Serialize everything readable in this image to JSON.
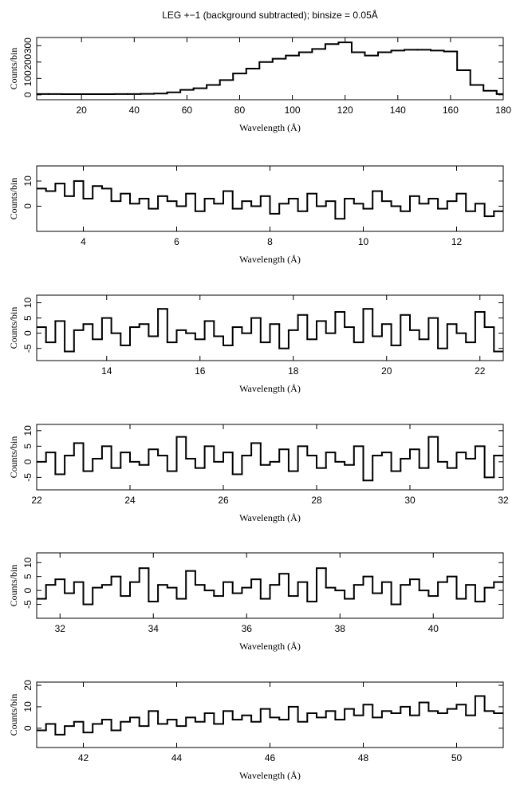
{
  "chart_data": [
    {
      "type": "step",
      "title": "LEG +−1 (background subtracted); binsize = 0.05Å",
      "xlabel": "Wavelength (Å)",
      "ylabel": "Counts/bin",
      "color": "#000000",
      "x": [
        5,
        10,
        15,
        20,
        25,
        30,
        35,
        40,
        45,
        50,
        55,
        60,
        65,
        70,
        75,
        80,
        85,
        90,
        95,
        100,
        105,
        110,
        115,
        120,
        125,
        130,
        135,
        140,
        145,
        150,
        155,
        160,
        165,
        170,
        175,
        180
      ],
      "values": [
        5,
        5,
        4,
        4,
        4,
        4,
        5,
        5,
        6,
        8,
        15,
        30,
        40,
        60,
        90,
        130,
        160,
        200,
        220,
        240,
        260,
        280,
        310,
        320,
        260,
        240,
        260,
        270,
        275,
        275,
        270,
        265,
        150,
        60,
        25,
        5
      ],
      "xlim": [
        3,
        180
      ],
      "xticks": [
        20,
        40,
        60,
        80,
        100,
        120,
        140,
        160,
        180
      ],
      "ylim": [
        -30,
        350
      ],
      "yticks": [
        0,
        100,
        200,
        300
      ]
    },
    {
      "type": "step",
      "xlabel": "Wavelength (Å)",
      "ylabel": "Counts/bin",
      "color": "#000000",
      "x": [
        3.1,
        3.3,
        3.5,
        3.7,
        3.9,
        4.1,
        4.3,
        4.5,
        4.7,
        4.9,
        5.1,
        5.3,
        5.5,
        5.7,
        5.9,
        6.1,
        6.3,
        6.5,
        6.7,
        6.9,
        7.1,
        7.3,
        7.5,
        7.7,
        7.9,
        8.1,
        8.3,
        8.5,
        8.7,
        8.9,
        9.1,
        9.3,
        9.5,
        9.7,
        9.9,
        10.1,
        10.3,
        10.5,
        10.7,
        10.9,
        11.1,
        11.3,
        11.5,
        11.7,
        11.9,
        12.1,
        12.3,
        12.5,
        12.7,
        12.9
      ],
      "values": [
        7,
        6,
        9,
        4,
        10,
        3,
        8,
        7,
        2,
        5,
        1,
        3,
        -1,
        4,
        2,
        0,
        5,
        -2,
        3,
        1,
        6,
        -1,
        2,
        0,
        4,
        -3,
        1,
        3,
        -2,
        5,
        0,
        2,
        -5,
        3,
        1,
        -1,
        6,
        2,
        0,
        -2,
        4,
        1,
        3,
        -1,
        2,
        5,
        -2,
        1,
        -4,
        -2
      ],
      "xlim": [
        3,
        13
      ],
      "xticks": [
        4,
        6,
        8,
        10,
        12
      ],
      "ylim": [
        -10,
        16
      ],
      "yticks": [
        0,
        10
      ]
    },
    {
      "type": "step",
      "xlabel": "Wavelength (Å)",
      "ylabel": "Counts/bin",
      "color": "#000000",
      "x": [
        12.6,
        12.8,
        13,
        13.2,
        13.4,
        13.6,
        13.8,
        14,
        14.2,
        14.4,
        14.6,
        14.8,
        15,
        15.2,
        15.4,
        15.6,
        15.8,
        16,
        16.2,
        16.4,
        16.6,
        16.8,
        17,
        17.2,
        17.4,
        17.6,
        17.8,
        18,
        18.2,
        18.4,
        18.6,
        18.8,
        19,
        19.2,
        19.4,
        19.6,
        19.8,
        20,
        20.2,
        20.4,
        20.6,
        20.8,
        21,
        21.2,
        21.4,
        21.6,
        21.8,
        22,
        22.2,
        22.4
      ],
      "values": [
        2,
        -3,
        4,
        -6,
        1,
        3,
        -2,
        5,
        0,
        -4,
        2,
        3,
        -1,
        8,
        -3,
        1,
        0,
        -2,
        4,
        -1,
        -4,
        2,
        0,
        5,
        -3,
        3,
        -5,
        1,
        6,
        -2,
        4,
        0,
        7,
        2,
        -3,
        8,
        -1,
        3,
        -4,
        6,
        1,
        -2,
        5,
        -5,
        3,
        0,
        -3,
        7,
        2,
        -6
      ],
      "xlim": [
        12.5,
        22.5
      ],
      "xticks": [
        14,
        16,
        18,
        20,
        22
      ],
      "ylim": [
        -9,
        12.5
      ],
      "yticks": [
        -5,
        0,
        5,
        10
      ]
    },
    {
      "type": "step",
      "xlabel": "Wavelength (Å)",
      "ylabel": "Counts/bin",
      "color": "#000000",
      "x": [
        22.1,
        22.3,
        22.5,
        22.7,
        22.9,
        23.1,
        23.3,
        23.5,
        23.7,
        23.9,
        24.1,
        24.3,
        24.5,
        24.7,
        24.9,
        25.1,
        25.3,
        25.5,
        25.7,
        25.9,
        26.1,
        26.3,
        26.5,
        26.7,
        26.9,
        27.1,
        27.3,
        27.5,
        27.7,
        27.9,
        28.1,
        28.3,
        28.5,
        28.7,
        28.9,
        29.1,
        29.3,
        29.5,
        29.7,
        29.9,
        30.1,
        30.3,
        30.5,
        30.7,
        30.9,
        31.1,
        31.3,
        31.5,
        31.7,
        31.9
      ],
      "values": [
        0,
        3,
        -4,
        2,
        6,
        -3,
        1,
        5,
        -2,
        3,
        0,
        -1,
        4,
        2,
        -3,
        8,
        1,
        -2,
        5,
        0,
        3,
        -4,
        2,
        6,
        -1,
        0,
        4,
        -3,
        5,
        2,
        -2,
        3,
        0,
        -1,
        5,
        -6,
        2,
        3,
        -3,
        1,
        4,
        -2,
        8,
        0,
        -2,
        3,
        1,
        5,
        -5,
        2
      ],
      "xlim": [
        22,
        32
      ],
      "xticks": [
        22,
        24,
        26,
        28,
        30,
        32
      ],
      "ylim": [
        -9,
        12
      ],
      "yticks": [
        -5,
        0,
        5,
        10
      ]
    },
    {
      "type": "step",
      "xlabel": "Wavelength (Å)",
      "ylabel": "Counts/bin",
      "color": "#000000",
      "x": [
        31.6,
        31.8,
        32,
        32.2,
        32.4,
        32.6,
        32.8,
        33,
        33.2,
        33.4,
        33.6,
        33.8,
        34,
        34.2,
        34.4,
        34.6,
        34.8,
        35,
        35.2,
        35.4,
        35.6,
        35.8,
        36,
        36.2,
        36.4,
        36.6,
        36.8,
        37,
        37.2,
        37.4,
        37.6,
        37.8,
        38,
        38.2,
        38.4,
        38.6,
        38.8,
        39,
        39.2,
        39.4,
        39.6,
        39.8,
        40,
        40.2,
        40.4,
        40.6,
        40.8,
        41,
        41.2,
        41.4
      ],
      "values": [
        -3,
        2,
        4,
        -1,
        3,
        -5,
        1,
        2,
        5,
        -2,
        3,
        8,
        -4,
        2,
        1,
        -3,
        7,
        2,
        0,
        -2,
        3,
        -1,
        1,
        4,
        -3,
        2,
        6,
        -2,
        3,
        -4,
        8,
        1,
        0,
        -3,
        2,
        5,
        -1,
        3,
        -5,
        2,
        4,
        0,
        -2,
        3,
        5,
        -3,
        2,
        -4,
        1,
        3
      ],
      "xlim": [
        31.5,
        41.5
      ],
      "xticks": [
        32,
        34,
        36,
        38,
        40
      ],
      "ylim": [
        -10,
        13.5
      ],
      "yticks": [
        -5,
        0,
        5,
        10
      ]
    },
    {
      "type": "step",
      "xlabel": "Wavelength (Å)",
      "ylabel": "Counts/bin",
      "color": "#000000",
      "x": [
        41.1,
        41.3,
        41.5,
        41.7,
        41.9,
        42.1,
        42.3,
        42.5,
        42.7,
        42.9,
        43.1,
        43.3,
        43.5,
        43.7,
        43.9,
        44.1,
        44.3,
        44.5,
        44.7,
        44.9,
        45.1,
        45.3,
        45.5,
        45.7,
        45.9,
        46.1,
        46.3,
        46.5,
        46.7,
        46.9,
        47.1,
        47.3,
        47.5,
        47.7,
        47.9,
        48.1,
        48.3,
        48.5,
        48.7,
        48.9,
        49.1,
        49.3,
        49.5,
        49.7,
        49.9,
        50.1,
        50.3,
        50.5,
        50.7,
        50.9
      ],
      "values": [
        -1,
        2,
        -3,
        1,
        3,
        -2,
        2,
        4,
        -1,
        3,
        5,
        1,
        8,
        2,
        4,
        1,
        5,
        3,
        7,
        2,
        8,
        4,
        6,
        3,
        9,
        5,
        4,
        10,
        3,
        7,
        5,
        8,
        4,
        9,
        6,
        11,
        5,
        8,
        7,
        10,
        6,
        12,
        8,
        7,
        9,
        11,
        6,
        15,
        8,
        7
      ],
      "xlim": [
        41,
        51
      ],
      "xticks": [
        42,
        44,
        46,
        48,
        50
      ],
      "ylim": [
        -9,
        21.5
      ],
      "yticks": [
        0,
        10,
        20
      ]
    }
  ]
}
